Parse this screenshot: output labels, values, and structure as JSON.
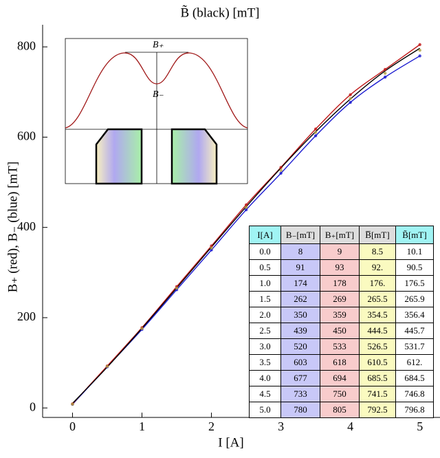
{
  "chart_data": {
    "type": "line",
    "title": "B̃ (black)   [mT]",
    "x_label": "I [A]",
    "y_label": "B₊ (red),   B₋ (blue)   [mT]",
    "x": [
      0,
      0.5,
      1,
      1.5,
      2,
      2.5,
      3,
      3.5,
      4,
      4.5,
      5
    ],
    "series": [
      {
        "color": "#1a1ad0",
        "line": true,
        "markers": true,
        "values": [
          8,
          91,
          174,
          262,
          350,
          439,
          520,
          603,
          677,
          733,
          780
        ]
      },
      {
        "color": "#c01818",
        "line": true,
        "markers": true,
        "values": [
          9,
          93,
          178,
          269,
          359,
          450,
          533,
          618,
          694,
          750,
          805
        ]
      },
      {
        "color": "#b0a040",
        "line": false,
        "markers": true,
        "values": [
          8.5,
          92,
          176,
          265.5,
          354.5,
          444.5,
          526.5,
          610.5,
          685.5,
          741.5,
          792.5
        ]
      },
      {
        "color": "#000000",
        "line": true,
        "markers": false,
        "values": [
          10.1,
          90.5,
          176.5,
          265.9,
          356.4,
          445.7,
          531.7,
          612,
          684.5,
          746.8,
          796.8
        ]
      }
    ],
    "xlim": [
      -0.43,
      5.29
    ],
    "ylim": [
      -21,
      849
    ],
    "xticks": [
      0,
      1,
      2,
      3,
      4,
      5
    ],
    "yticks": [
      0,
      200,
      400,
      600,
      800
    ]
  },
  "inset": {
    "top_label": "B₊",
    "bottom_label": "B₋"
  },
  "table": {
    "header": [
      "I[A]",
      "B₋[mT]",
      "B₊[mT]",
      "B̅[mT]",
      "B̃[mT]"
    ],
    "rows": [
      [
        "0.0",
        "8",
        "9",
        "8.5",
        "10.1"
      ],
      [
        "0.5",
        "91",
        "93",
        "92.",
        "90.5"
      ],
      [
        "1.0",
        "174",
        "178",
        "176.",
        "176.5"
      ],
      [
        "1.5",
        "262",
        "269",
        "265.5",
        "265.9"
      ],
      [
        "2.0",
        "350",
        "359",
        "354.5",
        "356.4"
      ],
      [
        "2.5",
        "439",
        "450",
        "444.5",
        "445.7"
      ],
      [
        "3.0",
        "520",
        "533",
        "526.5",
        "531.7"
      ],
      [
        "3.5",
        "603",
        "618",
        "610.5",
        "612."
      ],
      [
        "4.0",
        "677",
        "694",
        "685.5",
        "684.5"
      ],
      [
        "4.5",
        "733",
        "750",
        "741.5",
        "746.8"
      ],
      [
        "5.0",
        "780",
        "805",
        "792.5",
        "796.8"
      ]
    ]
  }
}
